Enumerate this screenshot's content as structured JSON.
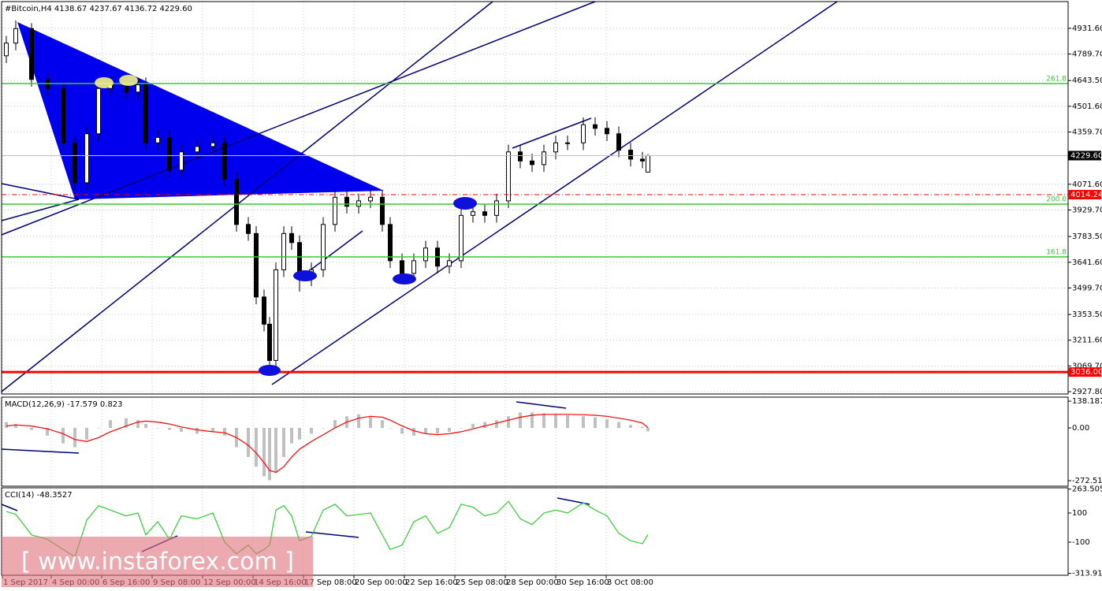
{
  "chart_data": [
    {
      "type": "candlestick",
      "title": "#Bitcoin,H4  4138.67 4237.67 4136.72 4229.60",
      "x": [
        5,
        17,
        37,
        57,
        77,
        92,
        107,
        122,
        137,
        157,
        172,
        182,
        197,
        212,
        227,
        247,
        267,
        282,
        297,
        312,
        322,
        332,
        339,
        347,
        357,
        367,
        377,
        392,
        407,
        422,
        437,
        452,
        467,
        482,
        492,
        507,
        522,
        537,
        552,
        567,
        582,
        597,
        612,
        627,
        642,
        657,
        672,
        687,
        702,
        717,
        737,
        752,
        767,
        782,
        797,
        812,
        819
      ],
      "open": [
        4780,
        4850,
        4930,
        4650,
        4600,
        4300,
        4080,
        4350,
        4600,
        4620,
        4580,
        4620,
        4300,
        4330,
        4150,
        4250,
        4280,
        4300,
        4100,
        3850,
        3800,
        3450,
        3300,
        3100,
        3600,
        3800,
        3750,
        3550,
        3600,
        3850,
        4000,
        3950,
        3980,
        4000,
        3850,
        3650,
        3580,
        3650,
        3720,
        3620,
        3650,
        3900,
        3920,
        3900,
        3980,
        4250,
        4200,
        4180,
        4250,
        4300,
        4300,
        4400,
        4380,
        4350,
        4260,
        4210,
        4138.67
      ],
      "high": [
        4890,
        4975,
        4960,
        4690,
        4640,
        4340,
        4390,
        4640,
        4670,
        4660,
        4660,
        4660,
        4370,
        4370,
        4290,
        4320,
        4340,
        4340,
        4140,
        3890,
        3840,
        3490,
        3340,
        3640,
        3840,
        3840,
        3790,
        3640,
        3890,
        4040,
        4040,
        4020,
        4040,
        4040,
        3890,
        3690,
        3690,
        3760,
        3760,
        3690,
        3940,
        3960,
        3960,
        4020,
        4290,
        4290,
        4240,
        4290,
        4340,
        4340,
        4440,
        4440,
        4420,
        4390,
        4300,
        4250,
        4237.67
      ],
      "low": [
        4740,
        4810,
        4610,
        4560,
        4260,
        4040,
        4040,
        4310,
        4560,
        4540,
        4540,
        4260,
        4260,
        4110,
        4110,
        4210,
        4240,
        4060,
        3810,
        3760,
        3410,
        3260,
        3036,
        3060,
        3560,
        3710,
        3480,
        3510,
        3560,
        3810,
        3910,
        3910,
        3940,
        3810,
        3610,
        3540,
        3540,
        3610,
        3580,
        3580,
        3610,
        3860,
        3860,
        3860,
        3940,
        4160,
        4140,
        4140,
        4210,
        4260,
        4260,
        4340,
        4310,
        4220,
        4170,
        4160,
        4136.72
      ],
      "close": [
        4850,
        4930,
        4650,
        4600,
        4300,
        4080,
        4350,
        4600,
        4620,
        4580,
        4620,
        4300,
        4330,
        4150,
        4250,
        4280,
        4300,
        4100,
        3850,
        3800,
        3450,
        3300,
        3100,
        3600,
        3800,
        3750,
        3550,
        3600,
        3850,
        4000,
        3950,
        3980,
        4000,
        3850,
        3650,
        3580,
        3650,
        3720,
        3620,
        3650,
        3900,
        3920,
        3900,
        3980,
        4250,
        4200,
        4180,
        4250,
        4300,
        4300,
        4400,
        4380,
        4350,
        4260,
        4210,
        4200,
        4229.6
      ],
      "color": "#000000",
      "xlim": [
        -1,
        1352
      ],
      "xticks": [
        {
          "value": 0,
          "label": "1 Sep 2017"
        },
        {
          "value": 62,
          "label": "4 Sep 00:00"
        },
        {
          "value": 126,
          "label": "6 Sep 16:00"
        },
        {
          "value": 190,
          "label": "9 Sep 08:00"
        },
        {
          "value": 254,
          "label": "12 Sep 00:00"
        },
        {
          "value": 318,
          "label": "14 Sep 16:00"
        },
        {
          "value": 382,
          "label": "17 Sep 08:00"
        },
        {
          "value": 446,
          "label": "20 Sep 00:00"
        },
        {
          "value": 510,
          "label": "22 Sep 16:00"
        },
        {
          "value": 574,
          "label": "25 Sep 08:00"
        },
        {
          "value": 638,
          "label": "28 Sep 00:00"
        },
        {
          "value": 702,
          "label": "30 Sep 16:00"
        },
        {
          "value": 766,
          "label": "3 Oct 08:00"
        }
      ],
      "ylim": [
        2915,
        5079
      ],
      "yticks": [
        {
          "value": 4931.6,
          "label": "4931.60"
        },
        {
          "value": 4789.7,
          "label": "4789.70"
        },
        {
          "value": 4643.5,
          "label": "4643.50"
        },
        {
          "value": 4501.6,
          "label": "4501.60"
        },
        {
          "value": 4359.7,
          "label": "4359.70"
        },
        {
          "value": 4071.6,
          "label": "4071.60"
        },
        {
          "value": 3929.7,
          "label": "3929.70"
        },
        {
          "value": 3783.5,
          "label": "3783.50"
        },
        {
          "value": 3641.6,
          "label": "3641.60"
        },
        {
          "value": 3499.7,
          "label": "3499.70"
        },
        {
          "value": 3353.5,
          "label": "3353.50"
        },
        {
          "value": 3211.6,
          "label": "3211.60"
        },
        {
          "value": 3069.7,
          "label": "3069.70"
        },
        {
          "value": 2927.8,
          "label": "2927.80"
        }
      ],
      "grid": true,
      "levels": [
        {
          "value": 4627,
          "label": "261.8"
        },
        {
          "value": 3962,
          "label": "200.0"
        },
        {
          "value": 3671,
          "label": "161.8"
        }
      ],
      "level_color": "#33cc33",
      "support": {
        "value": 3036,
        "label": "3036.00"
      },
      "support_color": "#ff0000",
      "bid_line": {
        "value": 4014.24,
        "label": "4014.24"
      },
      "last_price": {
        "value": 4229.6,
        "label": "4229.60"
      }
    },
    {
      "type": "macd",
      "title": "MACD(12,26,9) -17.579 0.823",
      "x": [
        5,
        17,
        37,
        57,
        77,
        92,
        107,
        122,
        137,
        157,
        172,
        182,
        197,
        212,
        227,
        247,
        267,
        282,
        297,
        312,
        322,
        332,
        339,
        347,
        357,
        367,
        377,
        392,
        407,
        422,
        437,
        452,
        467,
        482,
        492,
        507,
        522,
        537,
        552,
        567,
        582,
        597,
        612,
        627,
        642,
        657,
        672,
        687,
        702,
        717,
        737,
        752,
        767,
        782,
        797,
        812,
        819
      ],
      "series": [
        {
          "name": "MACD",
          "color": "#c0c0c0",
          "values": [
            30,
            20,
            -10,
            -40,
            -80,
            -100,
            -60,
            0,
            40,
            50,
            40,
            20,
            0,
            -10,
            -20,
            -30,
            -20,
            -40,
            -100,
            -150,
            -200,
            -250,
            -270,
            -230,
            -150,
            -80,
            -60,
            -30,
            0,
            40,
            60,
            70,
            60,
            40,
            0,
            -30,
            -40,
            -30,
            -30,
            -20,
            0,
            20,
            30,
            40,
            60,
            80,
            80,
            75,
            70,
            65,
            60,
            55,
            45,
            30,
            15,
            5,
            -17.579
          ]
        },
        {
          "name": "Signal",
          "color": "#ff0000",
          "values": [
            10,
            15,
            10,
            -5,
            -30,
            -60,
            -70,
            -50,
            -20,
            10,
            30,
            35,
            30,
            20,
            5,
            -10,
            -20,
            -25,
            -50,
            -90,
            -130,
            -180,
            -220,
            -230,
            -200,
            -150,
            -110,
            -70,
            -35,
            0,
            30,
            50,
            60,
            55,
            40,
            10,
            -15,
            -30,
            -35,
            -30,
            -20,
            -5,
            10,
            25,
            40,
            55,
            65,
            70,
            70,
            70,
            68,
            65,
            60,
            50,
            40,
            25,
            0.823
          ]
        }
      ],
      "xlim": [
        -1,
        1352
      ],
      "ylim": [
        -301,
        158.7
      ],
      "yticks": [
        138.187,
        {
          "value": 0,
          "label": "0.00"
        },
        -272.512
      ]
    },
    {
      "type": "line",
      "title": "CCI(14) -48.3527",
      "x": [
        5,
        17,
        37,
        57,
        77,
        92,
        107,
        122,
        137,
        157,
        172,
        182,
        197,
        212,
        227,
        247,
        267,
        282,
        297,
        312,
        322,
        332,
        339,
        347,
        357,
        367,
        377,
        392,
        407,
        422,
        437,
        452,
        467,
        482,
        492,
        507,
        522,
        537,
        552,
        567,
        582,
        597,
        612,
        627,
        642,
        657,
        672,
        687,
        702,
        717,
        737,
        752,
        767,
        782,
        797,
        812,
        819
      ],
      "series": [
        {
          "name": "CCI",
          "color": "#32cd32",
          "values": [
            110,
            90,
            -50,
            -80,
            -150,
            -200,
            50,
            150,
            120,
            80,
            100,
            -50,
            40,
            -80,
            80,
            60,
            100,
            -100,
            -180,
            -120,
            -180,
            -150,
            -120,
            120,
            150,
            80,
            -90,
            -60,
            120,
            160,
            80,
            90,
            100,
            -50,
            -150,
            -120,
            40,
            80,
            -40,
            0,
            160,
            140,
            80,
            100,
            180,
            60,
            20,
            100,
            120,
            100,
            170,
            120,
            80,
            -40,
            -90,
            -110,
            -48.3527
          ]
        }
      ],
      "xlim": [
        -1,
        1352
      ],
      "ylim": [
        -326.8,
        272.8
      ],
      "yticks": [
        263.505,
        100,
        -100,
        -313.9119
      ]
    }
  ],
  "watermark": "[ www.instaforex.com ]"
}
